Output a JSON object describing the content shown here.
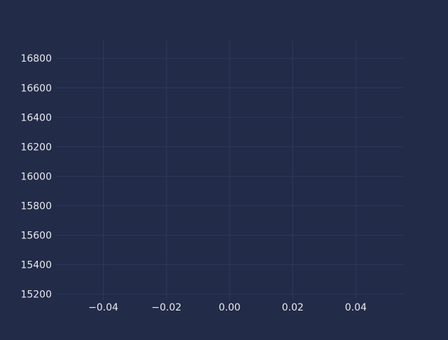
{
  "chart_data": {
    "type": "scatter",
    "title": "",
    "xlabel": "",
    "ylabel": "",
    "xlim": [
      -0.055,
      0.055
    ],
    "ylim": [
      15160,
      16920
    ],
    "x_ticks": [
      -0.04,
      -0.02,
      0.0,
      0.02,
      0.04
    ],
    "x_tick_labels": [
      "−0.04",
      "−0.02",
      "0.00",
      "0.02",
      "0.04"
    ],
    "y_ticks": [
      15200,
      15400,
      15600,
      15800,
      16000,
      16200,
      16400,
      16600,
      16800
    ],
    "y_tick_labels": [
      "15200",
      "15400",
      "15600",
      "15800",
      "16000",
      "16200",
      "16400",
      "16600",
      "16800"
    ],
    "grid": true,
    "series": [],
    "colors": {
      "background": "#222b48",
      "grid": "#2e3a5c",
      "text": "#e8eaf0"
    }
  }
}
